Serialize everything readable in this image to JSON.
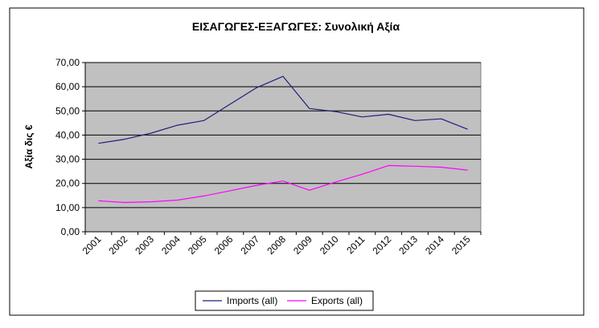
{
  "chart_data": {
    "type": "line",
    "title": "ΕΙΣΑΓΩΓΕΣ-ΕΞΑΓΩΓΕΣ: Συνολική Αξία",
    "xlabel": "",
    "ylabel": "Αξία δις €",
    "ylim": [
      0,
      70
    ],
    "yticks": [
      "0,00",
      "10,00",
      "20,00",
      "30,00",
      "40,00",
      "50,00",
      "60,00",
      "70,00"
    ],
    "categories": [
      "2001",
      "2002",
      "2003",
      "2004",
      "2005",
      "2006",
      "2007",
      "2008",
      "2009",
      "2010",
      "2011",
      "2012",
      "2013",
      "2014",
      "2015"
    ],
    "grid": true,
    "legend_position": "bottom",
    "series": [
      {
        "name": "Imports (all)",
        "color": "#1f1f80",
        "values": [
          36.6,
          38.3,
          40.8,
          44.1,
          46.0,
          52.8,
          59.6,
          64.3,
          51.0,
          49.7,
          47.5,
          48.6,
          46.0,
          46.7,
          42.4
        ]
      },
      {
        "name": "Exports (all)",
        "color": "#ff00ff",
        "values": [
          12.8,
          12.1,
          12.4,
          13.1,
          14.8,
          17.0,
          19.2,
          21.0,
          17.2,
          20.6,
          23.8,
          27.4,
          27.1,
          26.7,
          25.5
        ]
      }
    ],
    "plot_area_color": "#c0c0c0",
    "gridline_color": "#000000"
  }
}
